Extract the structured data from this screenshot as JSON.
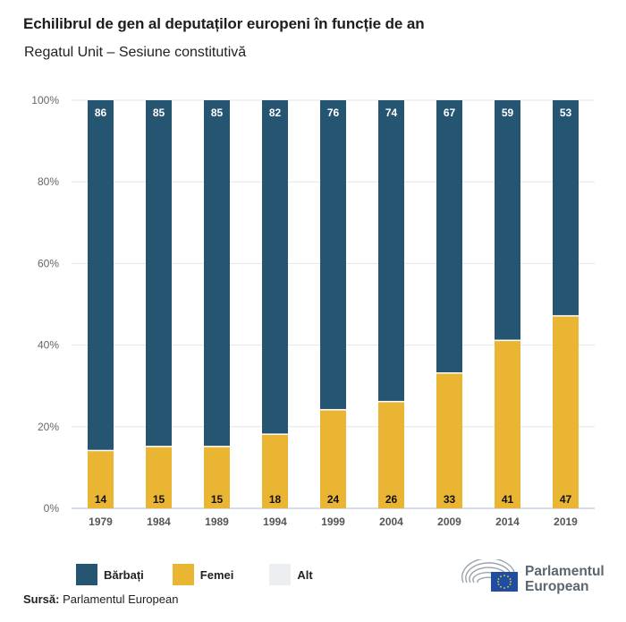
{
  "header": {
    "title": "Echilibrul de gen al deputaților europeni în funcție de an",
    "subtitle": "Regatul Unit – Sesiune constitutivă"
  },
  "chart_data": {
    "type": "bar",
    "stacked": true,
    "title": "Echilibrul de gen al deputaților europeni în funcție de an",
    "subtitle": "Regatul Unit – Sesiune constitutivă",
    "xlabel": "",
    "ylabel": "",
    "ylim": [
      0,
      100
    ],
    "yticks": [
      "0%",
      "20%",
      "40%",
      "60%",
      "80%",
      "100%"
    ],
    "ytick_values": [
      0,
      20,
      40,
      60,
      80,
      100
    ],
    "grid": true,
    "categories": [
      "1979",
      "1984",
      "1989",
      "1994",
      "1999",
      "2004",
      "2009",
      "2014",
      "2019"
    ],
    "series": [
      {
        "name": "Femei",
        "color": "#ebb534",
        "label_color": "#111111",
        "values": [
          14,
          15,
          15,
          18,
          24,
          26,
          33,
          41,
          47
        ]
      },
      {
        "name": "Bărbați",
        "color": "#265571",
        "label_color": "#ffffff",
        "values": [
          86,
          85,
          85,
          82,
          76,
          74,
          67,
          59,
          53
        ]
      },
      {
        "name": "Alt",
        "color": "#eceef1",
        "label_color": "#111111",
        "values": [
          0,
          0,
          0,
          0,
          0,
          0,
          0,
          0,
          0
        ]
      }
    ],
    "legend": {
      "position": "bottom-left",
      "entries": [
        {
          "label": "Bărbați",
          "color": "#265571"
        },
        {
          "label": "Femei",
          "color": "#ebb534"
        },
        {
          "label": "Alt",
          "color": "#eceef1"
        }
      ]
    }
  },
  "footer": {
    "source_label": "Sursă:",
    "source_text": "Parlamentul European",
    "logo_line1": "Parlamentul",
    "logo_line2": "European"
  }
}
